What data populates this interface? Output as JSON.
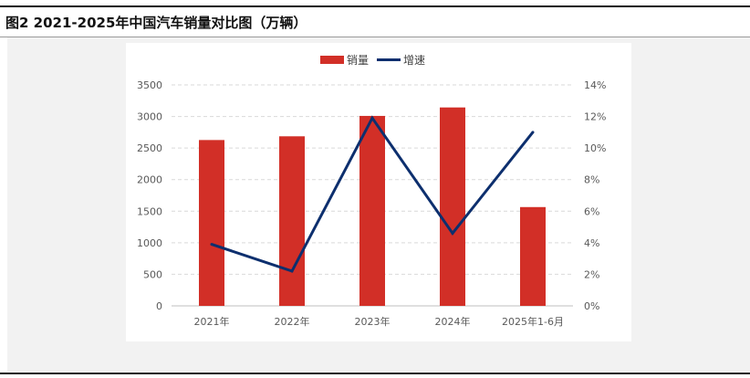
{
  "header": {
    "title": "图2 2021-2025年中国汽车销量对比图（万辆）"
  },
  "chart_data": {
    "type": "bar",
    "title": "",
    "categories": [
      "2021年",
      "2022年",
      "2023年",
      "2024年",
      "2025年1-6月"
    ],
    "series": [
      {
        "name": "销量",
        "type": "bar",
        "axis": "left",
        "color": "#d22f27",
        "values": [
          2627,
          2686,
          3009,
          3143,
          1565
        ]
      },
      {
        "name": "增速",
        "type": "line",
        "axis": "right",
        "color": "#0d2f6e",
        "values": [
          3.9,
          2.2,
          11.9,
          4.6,
          11.0
        ]
      }
    ],
    "y_left": {
      "min": 0,
      "max": 3500,
      "step": 500,
      "tick_labels": [
        "0",
        "500",
        "1000",
        "1500",
        "2000",
        "2500",
        "3000",
        "3500"
      ]
    },
    "y_right": {
      "min": 0,
      "max": 14,
      "step": 2,
      "tick_labels": [
        "0%",
        "2%",
        "4%",
        "6%",
        "8%",
        "10%",
        "12%",
        "14%"
      ]
    },
    "legend": {
      "position": "top-center",
      "items": [
        "销量",
        "增速"
      ]
    },
    "grid": true
  }
}
